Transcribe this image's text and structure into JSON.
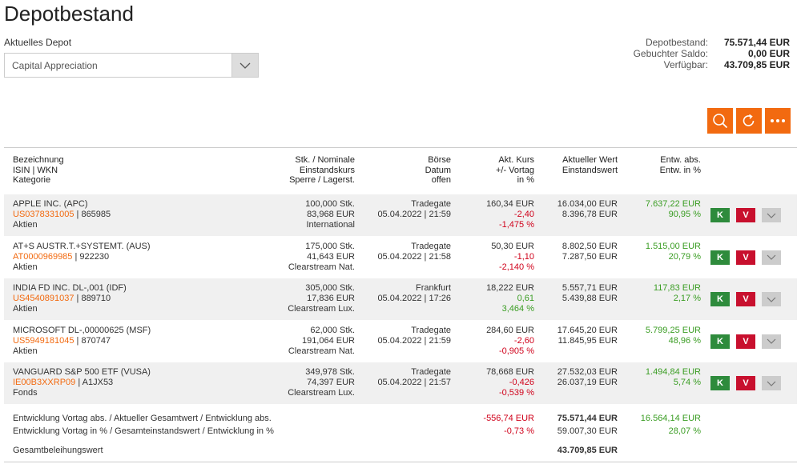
{
  "page": {
    "title": "Depotbestand"
  },
  "depot": {
    "label": "Aktuelles Depot",
    "selected": "Capital Appreciation"
  },
  "summary": [
    {
      "label": "Depotbestand:",
      "value": "75.571,44 EUR"
    },
    {
      "label": "Gebuchter Saldo:",
      "value": "0,00 EUR"
    },
    {
      "label": "Verfügbar:",
      "value": "43.709,85 EUR"
    }
  ],
  "toolbar": {
    "search_icon": "search-icon",
    "refresh_icon": "refresh-icon",
    "more_icon": "more-icon",
    "accent": "#f26a10"
  },
  "headers": {
    "col1": [
      "Bezeichnung",
      "ISIN | WKN",
      "Kategorie"
    ],
    "col2": [
      "Stk. / Nominale",
      "Einstandskurs",
      "Sperre / Lagerst."
    ],
    "col3": [
      "Börse",
      "Datum",
      "offen"
    ],
    "col4": [
      "Akt. Kurs",
      "+/- Vortag",
      "in %"
    ],
    "col5": [
      "Aktueller Wert",
      "Einstandswert"
    ],
    "col6": [
      "Entw. abs.",
      "Entw. in %"
    ]
  },
  "rows": [
    {
      "name": "APPLE INC. (APC)",
      "isin": "US0378331005",
      "wkn": "| 865985",
      "category": "Aktien",
      "qty": "100,000 Stk.",
      "cost_price": "83,968 EUR",
      "storage": "International",
      "exchange": "Tradegate",
      "date": "05.04.2022 | 21:59",
      "price": "160,34 EUR",
      "change": "-2,40",
      "change_pct": "-1,475 %",
      "change_dir": "neg",
      "value": "16.034,00 EUR",
      "cost_value": "8.396,78 EUR",
      "perf_abs": "7.637,22 EUR",
      "perf_pct": "90,95 %",
      "buy": "K",
      "sell": "V"
    },
    {
      "name": "AT+S AUSTR.T.+SYSTEMT. (AUS)",
      "isin": "AT0000969985",
      "wkn": "| 922230",
      "category": "Aktien",
      "qty": "175,000 Stk.",
      "cost_price": "41,643 EUR",
      "storage": "Clearstream Nat.",
      "exchange": "Tradegate",
      "date": "05.04.2022 | 21:58",
      "price": "50,30 EUR",
      "change": "-1,10",
      "change_pct": "-2,140 %",
      "change_dir": "neg",
      "value": "8.802,50 EUR",
      "cost_value": "7.287,50 EUR",
      "perf_abs": "1.515,00 EUR",
      "perf_pct": "20,79 %",
      "buy": "K",
      "sell": "V"
    },
    {
      "name": "INDIA FD INC. DL-,001 (IDF)",
      "isin": "US4540891037",
      "wkn": "| 889710",
      "category": "Aktien",
      "qty": "305,000 Stk.",
      "cost_price": "17,836 EUR",
      "storage": "Clearstream Lux.",
      "exchange": "Frankfurt",
      "date": "05.04.2022 | 17:26",
      "price": "18,222 EUR",
      "change": "0,61",
      "change_pct": "3,464 %",
      "change_dir": "pos",
      "value": "5.557,71 EUR",
      "cost_value": "5.439,88 EUR",
      "perf_abs": "117,83 EUR",
      "perf_pct": "2,17 %",
      "buy": "K",
      "sell": "V"
    },
    {
      "name": "MICROSOFT DL-,00000625 (MSF)",
      "isin": "US5949181045",
      "wkn": "| 870747",
      "category": "Aktien",
      "qty": "62,000 Stk.",
      "cost_price": "191,064 EUR",
      "storage": "Clearstream Nat.",
      "exchange": "Tradegate",
      "date": "05.04.2022 | 21:59",
      "price": "284,60 EUR",
      "change": "-2,60",
      "change_pct": "-0,905 %",
      "change_dir": "neg",
      "value": "17.645,20 EUR",
      "cost_value": "11.845,95 EUR",
      "perf_abs": "5.799,25 EUR",
      "perf_pct": "48,96 %",
      "buy": "K",
      "sell": "V"
    },
    {
      "name": "VANGUARD S&P 500 ETF (VUSA)",
      "isin": "IE00B3XXRP09",
      "wkn": "| A1JX53",
      "category": "Fonds",
      "qty": "349,978 Stk.",
      "cost_price": "74,397 EUR",
      "storage": "Clearstream Lux.",
      "exchange": "Tradegate",
      "date": "05.04.2022 | 21:57",
      "price": "78,668 EUR",
      "change": "-0,426",
      "change_pct": "-0,539 %",
      "change_dir": "neg",
      "value": "27.532,03 EUR",
      "cost_value": "26.037,19 EUR",
      "perf_abs": "1.494,84 EUR",
      "perf_pct": "5,74 %",
      "buy": "K",
      "sell": "V"
    }
  ],
  "footer": {
    "line1_label": "Entwicklung Vortag abs. / Aktueller Gesamtwert / Entwicklung abs.",
    "line1_change": "-556,74 EUR",
    "line1_total": "75.571,44 EUR",
    "line1_perf": "16.564,14 EUR",
    "line2_label": "Entwicklung Vortag in % / Gesamteinstandswert / Entwicklung in %",
    "line2_change": "-0,73 %",
    "line2_total": "59.007,30 EUR",
    "line2_perf": "28,07 %",
    "line3_label": "Gesamtbeleihungswert",
    "line3_total": "43.709,85 EUR"
  },
  "colors": {
    "row_alt": "#f0f0f0",
    "negative": "#d0021b",
    "positive": "#3a9d23",
    "isin": "#f26a10",
    "buy": "#2e8b3c",
    "sell": "#c8102e"
  }
}
